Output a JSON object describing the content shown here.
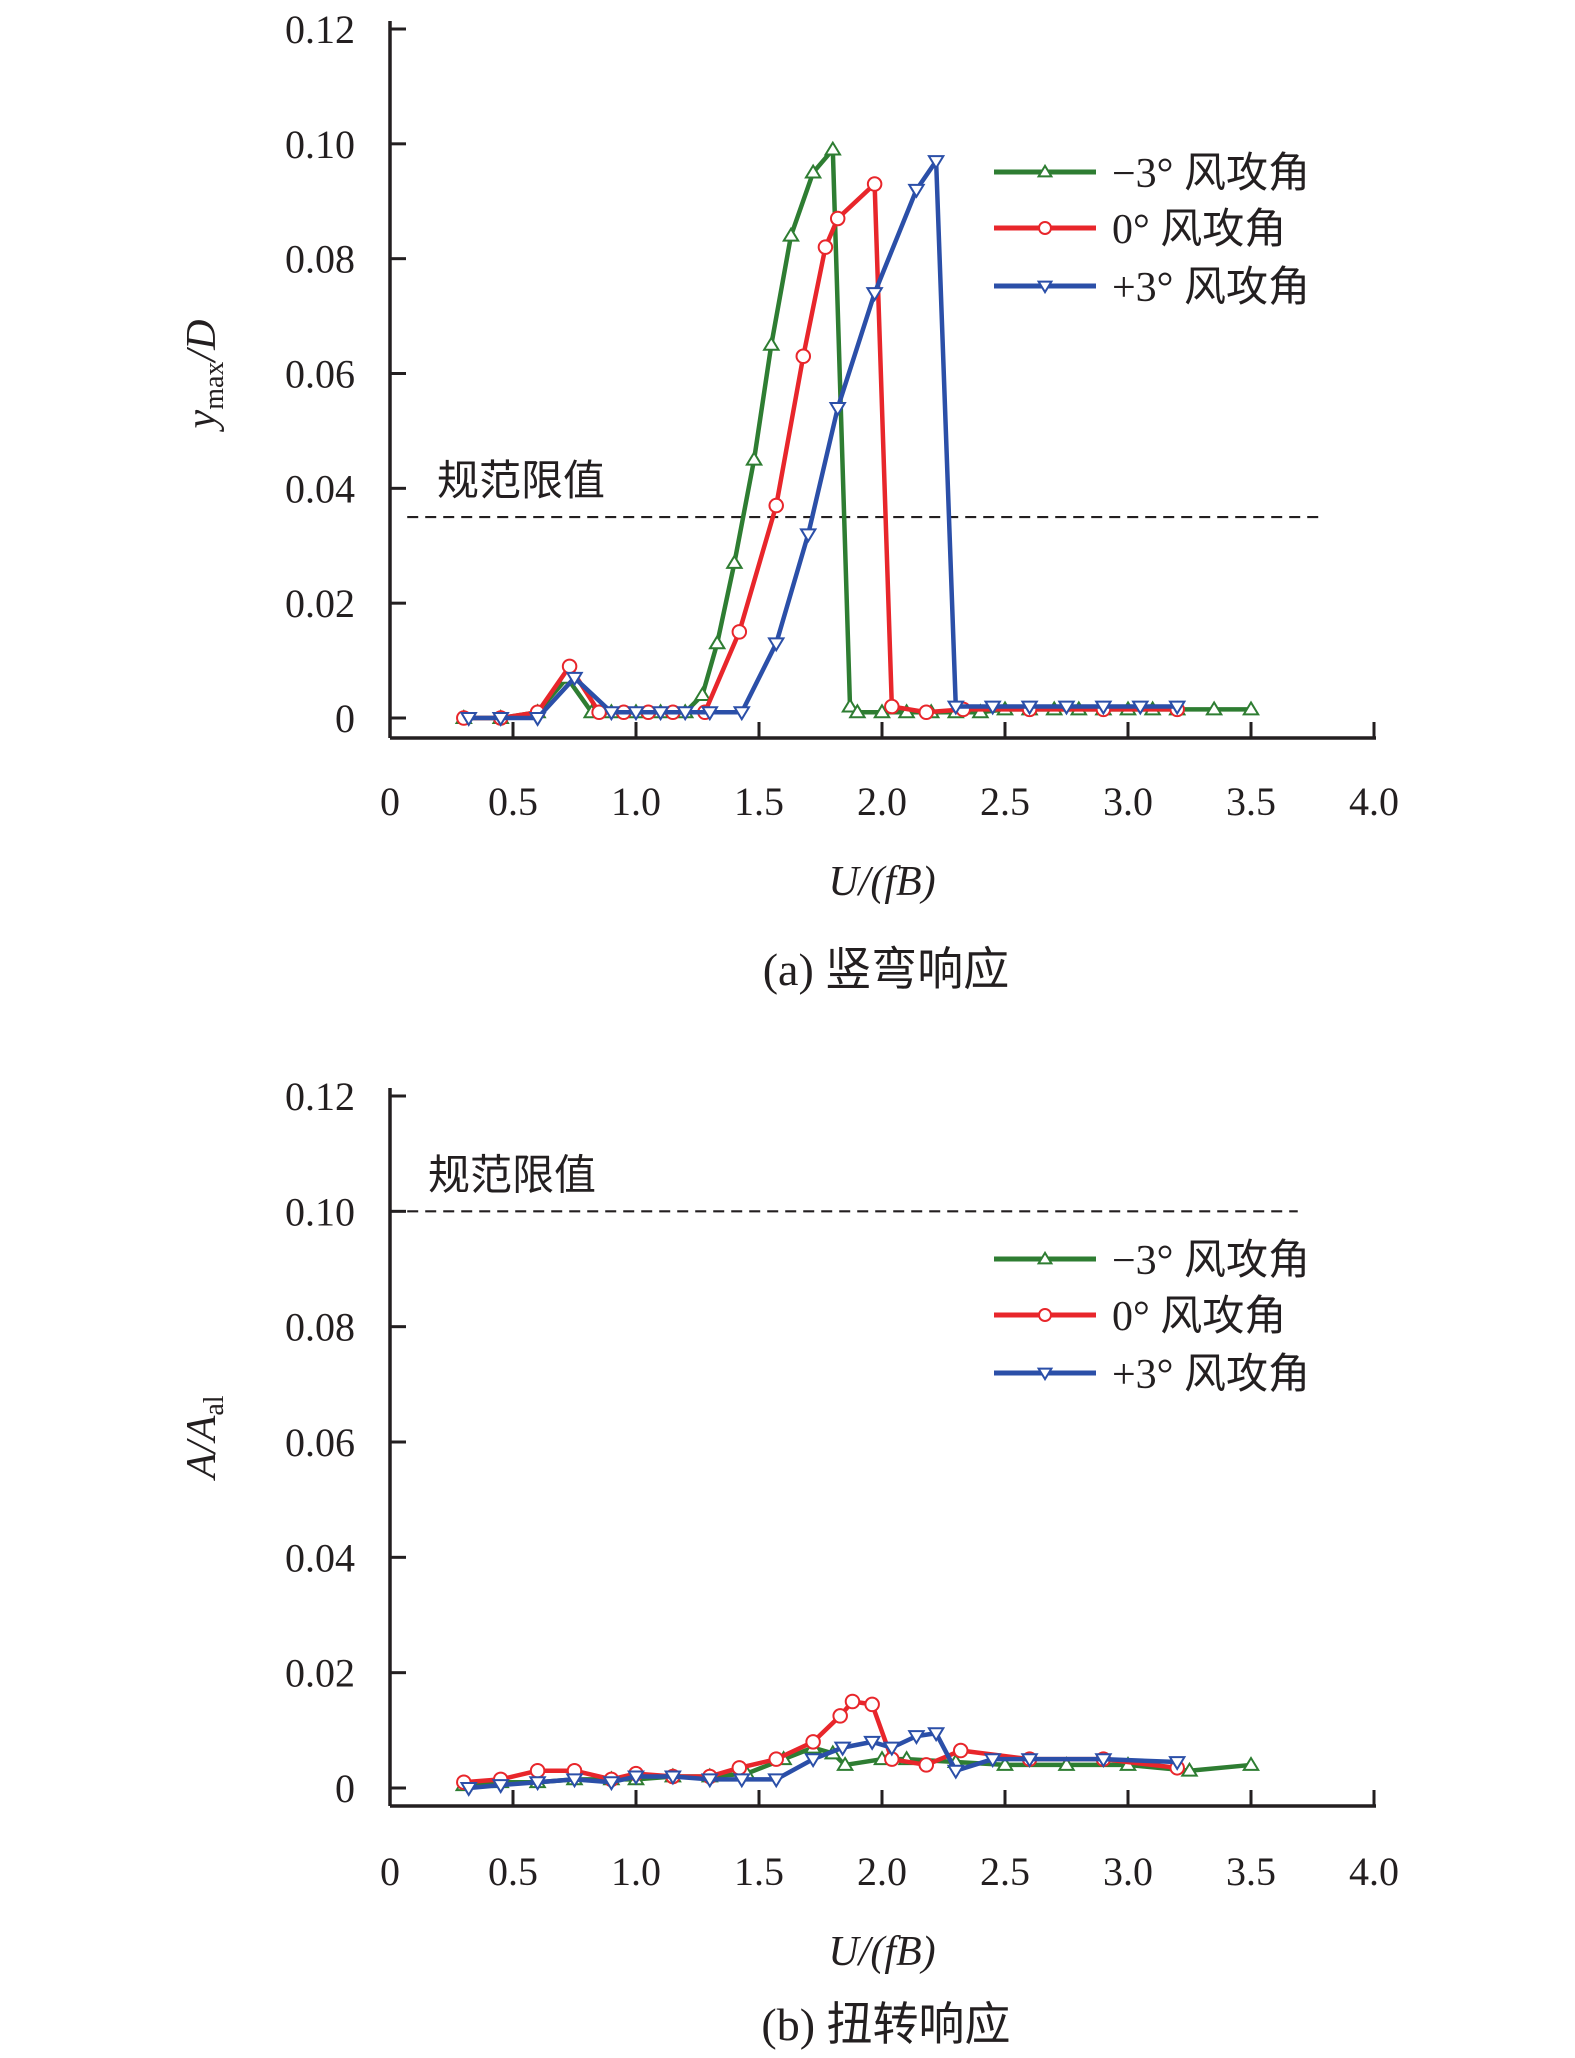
{
  "chart_data": [
    {
      "type": "line",
      "caption": "(a) 竖弯响应",
      "xlabel": "U/(fB)",
      "ylabel_main": "y",
      "ylabel_sub": "max",
      "ylabel_tail": "/D",
      "xlim": [
        0,
        4.0
      ],
      "ylim": [
        0,
        0.12
      ],
      "xticks": [
        0,
        0.5,
        1.0,
        1.5,
        2.0,
        2.5,
        3.0,
        3.5,
        4.0
      ],
      "xtick_labels": [
        "0",
        "0.5",
        "1.0",
        "1.5",
        "2.0",
        "2.5",
        "3.0",
        "3.5",
        "4.0"
      ],
      "yticks": [
        0,
        0.02,
        0.04,
        0.06,
        0.08,
        0.1,
        0.12
      ],
      "ytick_labels": [
        "0",
        "0.02",
        "0.04",
        "0.06",
        "0.08",
        "0.10",
        "0.12"
      ],
      "limit": {
        "label": "规范限值",
        "value": 0.035,
        "x_range": [
          0.07,
          3.8
        ]
      },
      "legend_position": "top-right",
      "series": [
        {
          "name": "−3° 风攻角",
          "color": "#2e7d32",
          "marker": "triangle-up",
          "x": [
            0.3,
            0.45,
            0.6,
            0.72,
            0.82,
            0.9,
            1.0,
            1.1,
            1.2,
            1.27,
            1.33,
            1.4,
            1.48,
            1.55,
            1.63,
            1.72,
            1.8,
            1.87,
            1.9,
            2.0,
            2.1,
            2.2,
            2.3,
            2.4,
            2.5,
            2.6,
            2.7,
            2.8,
            2.9,
            3.0,
            3.1,
            3.2,
            3.35,
            3.5
          ],
          "y": [
            0,
            0,
            0.001,
            0.007,
            0.001,
            0.001,
            0.001,
            0.001,
            0.001,
            0.004,
            0.013,
            0.027,
            0.045,
            0.065,
            0.084,
            0.095,
            0.099,
            0.002,
            0.001,
            0.001,
            0.001,
            0.001,
            0.001,
            0.001,
            0.0015,
            0.0015,
            0.0015,
            0.0015,
            0.0015,
            0.0015,
            0.0015,
            0.0015,
            0.0015,
            0.0015
          ]
        },
        {
          "name": "0° 风攻角",
          "color": "#e8262b",
          "marker": "circle",
          "x": [
            0.3,
            0.45,
            0.6,
            0.73,
            0.85,
            0.95,
            1.05,
            1.15,
            1.28,
            1.42,
            1.57,
            1.68,
            1.77,
            1.82,
            1.97,
            2.04,
            2.18,
            2.33,
            2.6,
            2.9,
            3.2
          ],
          "y": [
            0,
            0,
            0.001,
            0.009,
            0.001,
            0.001,
            0.001,
            0.001,
            0.001,
            0.015,
            0.037,
            0.063,
            0.082,
            0.087,
            0.093,
            0.002,
            0.001,
            0.0015,
            0.0015,
            0.0015,
            0.0015
          ]
        },
        {
          "name": "+3° 风攻角",
          "color": "#2b4fa8",
          "marker": "triangle-down",
          "x": [
            0.32,
            0.45,
            0.6,
            0.75,
            0.9,
            1.0,
            1.1,
            1.2,
            1.3,
            1.43,
            1.57,
            1.7,
            1.82,
            1.97,
            2.14,
            2.22,
            2.3,
            2.45,
            2.6,
            2.75,
            2.9,
            3.05,
            3.2
          ],
          "y": [
            0,
            0,
            0,
            0.007,
            0.001,
            0.001,
            0.001,
            0.001,
            0.001,
            0.001,
            0.013,
            0.032,
            0.054,
            0.074,
            0.092,
            0.097,
            0.002,
            0.002,
            0.002,
            0.002,
            0.002,
            0.002,
            0.002
          ]
        }
      ]
    },
    {
      "type": "line",
      "caption": "(b) 扭转响应",
      "xlabel": "U/(fB)",
      "ylabel_main": "A",
      "ylabel_sub": "al",
      "ylabel_tail": "/A",
      "xlim": [
        0,
        4.0
      ],
      "ylim": [
        0,
        0.12
      ],
      "xticks": [
        0,
        0.5,
        1.0,
        1.5,
        2.0,
        2.5,
        3.0,
        3.5,
        4.0
      ],
      "xtick_labels": [
        "0",
        "0.5",
        "1.0",
        "1.5",
        "2.0",
        "2.5",
        "3.0",
        "3.5",
        "4.0"
      ],
      "yticks": [
        0,
        0.02,
        0.04,
        0.06,
        0.08,
        0.1,
        0.12
      ],
      "ytick_labels": [
        "0",
        "0.02",
        "0.04",
        "0.06",
        "0.08",
        "0.10",
        "0.12"
      ],
      "limit": {
        "label": "规范限值",
        "value": 0.1,
        "x_range": [
          0.07,
          3.69
        ]
      },
      "legend_position": "top-right",
      "series": [
        {
          "name": "−3° 风攻角",
          "color": "#2e7d32",
          "marker": "triangle-up",
          "x": [
            0.3,
            0.45,
            0.6,
            0.75,
            0.9,
            1.0,
            1.15,
            1.3,
            1.45,
            1.6,
            1.72,
            1.8,
            1.85,
            2.0,
            2.1,
            2.3,
            2.5,
            2.75,
            3.0,
            3.25,
            3.5
          ],
          "y": [
            0.0005,
            0.001,
            0.001,
            0.0015,
            0.0015,
            0.0015,
            0.002,
            0.002,
            0.0025,
            0.005,
            0.007,
            0.006,
            0.004,
            0.005,
            0.005,
            0.0045,
            0.004,
            0.004,
            0.004,
            0.003,
            0.004
          ]
        },
        {
          "name": "0° 风攻角",
          "color": "#e8262b",
          "marker": "circle",
          "x": [
            0.3,
            0.45,
            0.6,
            0.75,
            0.9,
            1.0,
            1.15,
            1.3,
            1.42,
            1.57,
            1.72,
            1.83,
            1.88,
            1.96,
            2.04,
            2.18,
            2.32,
            2.6,
            2.9,
            3.2
          ],
          "y": [
            0.001,
            0.0015,
            0.003,
            0.003,
            0.0015,
            0.0025,
            0.002,
            0.002,
            0.0035,
            0.005,
            0.008,
            0.0125,
            0.015,
            0.0145,
            0.005,
            0.004,
            0.0065,
            0.005,
            0.005,
            0.0035
          ]
        },
        {
          "name": "+3° 风攻角",
          "color": "#2b4fa8",
          "marker": "triangle-down",
          "x": [
            0.32,
            0.45,
            0.6,
            0.75,
            0.9,
            1.0,
            1.15,
            1.3,
            1.43,
            1.57,
            1.72,
            1.84,
            1.96,
            2.04,
            2.14,
            2.22,
            2.3,
            2.45,
            2.6,
            2.9,
            3.2
          ],
          "y": [
            0,
            0.0005,
            0.001,
            0.0015,
            0.001,
            0.002,
            0.002,
            0.0015,
            0.0015,
            0.0015,
            0.005,
            0.007,
            0.008,
            0.007,
            0.009,
            0.0095,
            0.003,
            0.005,
            0.005,
            0.005,
            0.0045
          ]
        }
      ]
    }
  ]
}
